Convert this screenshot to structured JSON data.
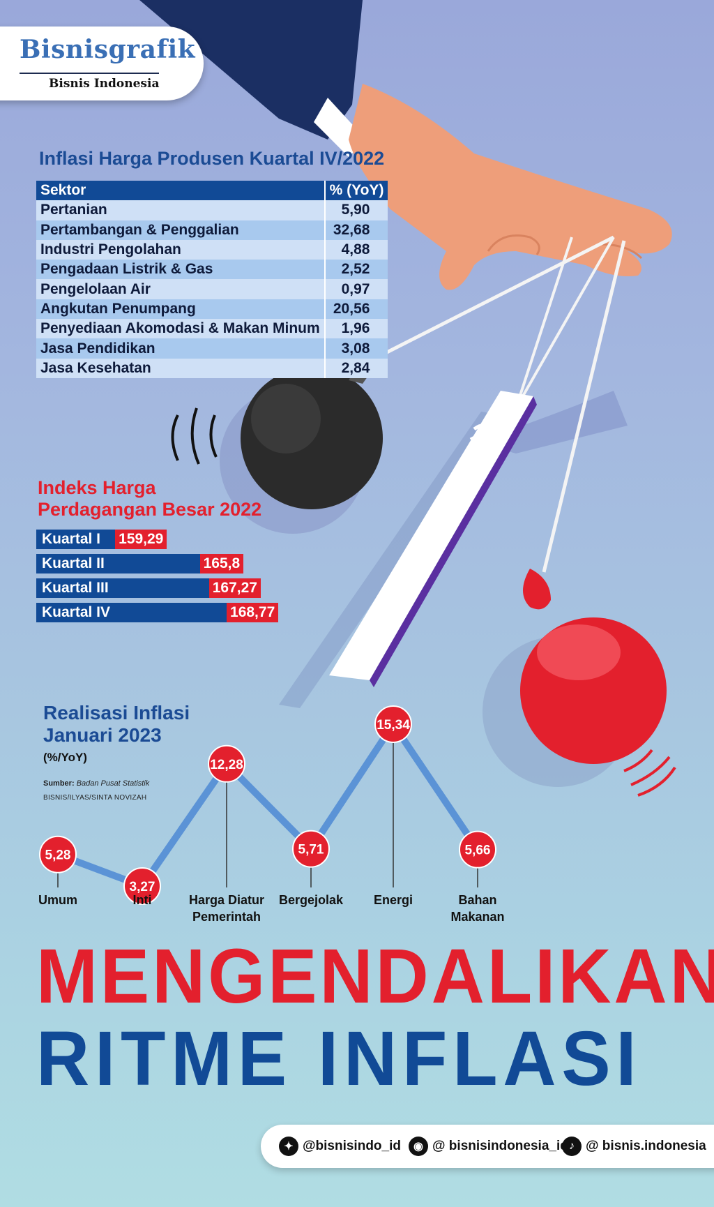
{
  "logo": {
    "main": "Bisnisgrafik",
    "sub": "Bisnis Indonesia"
  },
  "ppi": {
    "title": "Inflasi Harga Produsen Kuartal IV/2022",
    "header": {
      "sector": "Sektor",
      "value": "% (YoY)"
    },
    "rows": [
      {
        "sector": "Pertanian",
        "value": "5,90"
      },
      {
        "sector": "Pertambangan & Penggalian",
        "value": "32,68"
      },
      {
        "sector": "Industri Pengolahan",
        "value": "4,88"
      },
      {
        "sector": "Pengadaan Listrik & Gas",
        "value": "2,52"
      },
      {
        "sector": "Pengelolaan Air",
        "value": "0,97"
      },
      {
        "sector": "Angkutan Penumpang",
        "value": "20,56"
      },
      {
        "sector": "Penyediaan Akomodasi & Makan Minum",
        "value": "1,96"
      },
      {
        "sector": "Jasa Pendidikan",
        "value": "3,08"
      },
      {
        "sector": "Jasa Kesehatan",
        "value": "2,84"
      }
    ]
  },
  "wpi": {
    "title_line1": "Indeks Harga",
    "title_line2": "Perdagangan Besar 2022",
    "items": [
      {
        "label": "Kuartal I",
        "value": "159,29",
        "num": 159.29
      },
      {
        "label": "Kuartal II",
        "value": "165,8",
        "num": 165.8
      },
      {
        "label": "Kuartal III",
        "value": "167,27",
        "num": 167.27
      },
      {
        "label": "Kuartal IV",
        "value": "168,77",
        "num": 168.77
      }
    ]
  },
  "inflation": {
    "title_line1": "Realisasi Inflasi",
    "title_line2": "Januari 2023",
    "unit": "(%/YoY)",
    "source_label": "Sumber:",
    "source": "Badan Pusat Statistik",
    "credit": "BISNIS/ILYAS/SINTA NOVIZAH"
  },
  "chart_data": [
    {
      "type": "table",
      "title": "Inflasi Harga Produsen Kuartal IV/2022",
      "columns": [
        "Sektor",
        "% (YoY)"
      ],
      "rows": [
        [
          "Pertanian",
          5.9
        ],
        [
          "Pertambangan & Penggalian",
          32.68
        ],
        [
          "Industri Pengolahan",
          4.88
        ],
        [
          "Pengadaan Listrik & Gas",
          2.52
        ],
        [
          "Pengelolaan Air",
          0.97
        ],
        [
          "Angkutan Penumpang",
          20.56
        ],
        [
          "Penyediaan Akomodasi & Makan Minum",
          1.96
        ],
        [
          "Jasa Pendidikan",
          3.08
        ],
        [
          "Jasa Kesehatan",
          2.84
        ]
      ]
    },
    {
      "type": "bar",
      "title": "Indeks Harga Perdagangan Besar 2022",
      "categories": [
        "Kuartal I",
        "Kuartal II",
        "Kuartal III",
        "Kuartal IV"
      ],
      "values": [
        159.29,
        165.8,
        167.27,
        168.77
      ]
    },
    {
      "type": "line",
      "title": "Realisasi Inflasi Januari 2023",
      "ylabel": "(%/YoY)",
      "categories": [
        "Umum",
        "Inti",
        "Harga Diatur Pemerintah",
        "Bergejolak",
        "Energi",
        "Bahan Makanan"
      ],
      "category_lines": [
        [
          "Umum"
        ],
        [
          "Inti"
        ],
        [
          "Harga Diatur",
          "Pemerintah"
        ],
        [
          "Bergejolak"
        ],
        [
          "Energi"
        ],
        [
          "Bahan",
          "Makanan"
        ]
      ],
      "values": [
        5.28,
        3.27,
        12.28,
        5.71,
        15.34,
        5.66
      ],
      "labels": [
        "5,28",
        "3,27",
        "12,28",
        "5,71",
        "15,34",
        "5,66"
      ],
      "grid": false,
      "legend": "none"
    }
  ],
  "headline": {
    "line1": "MENGENDALIKAN",
    "line2": "RITME INFLASI"
  },
  "social": {
    "twitter": "@bisnisindo_id",
    "instagram": "@ bisnisindonesia_id",
    "tiktok": "@ bisnis.indonesia"
  },
  "colors": {
    "red": "#e3202d",
    "blue": "#114a96",
    "line": "#5b93d6"
  }
}
